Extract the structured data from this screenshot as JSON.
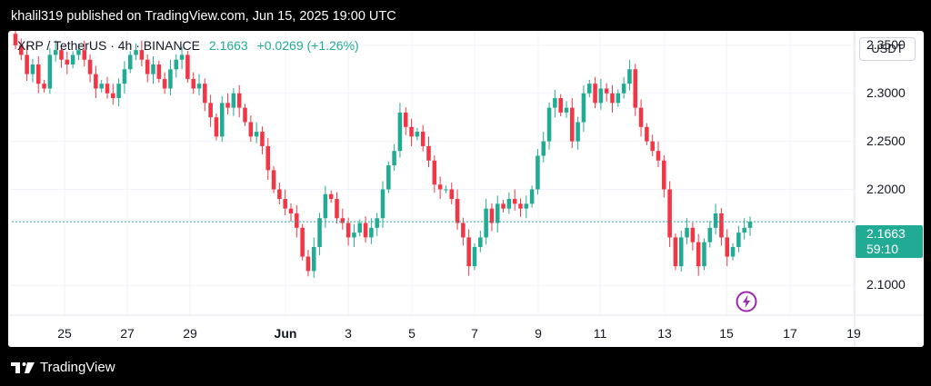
{
  "header": {
    "published": "khalil319 published on TradingView.com, Jun 15, 2025 19:00 UTC"
  },
  "legend": {
    "symbol": "XRP / TetherUS · 4h · BINANCE",
    "price": "2.1663",
    "change": "+0.0269 (+1.26%)"
  },
  "currency_button": "USDT",
  "last_price_tag": {
    "price": "2.1663",
    "countdown": "59:10"
  },
  "footer": {
    "brand": "TradingView"
  },
  "colors": {
    "up": "#22ab94",
    "down": "#f23645",
    "price_line": "#22ab94",
    "flash": "#9c27b0"
  },
  "icons": [
    "flash-icon",
    "tradingview-logo-icon"
  ],
  "chart_data": {
    "type": "candlestick",
    "title": "XRP / TetherUS · 4h · BINANCE",
    "ylim": [
      2.07,
      2.365
    ],
    "y_ticks": [
      "2.3500",
      "2.3000",
      "2.2500",
      "2.2000",
      "2.1000"
    ],
    "y_tick_values": [
      2.35,
      2.3,
      2.25,
      2.2,
      2.1
    ],
    "x_ticks": [
      "25",
      "27",
      "29",
      "Jun",
      "3",
      "5",
      "7",
      "9",
      "11",
      "13",
      "15",
      "17",
      "19"
    ],
    "x_tick_bold": [
      "Jun"
    ],
    "last_price": 2.1663,
    "grid": true,
    "close_series": [
      2.35,
      2.34,
      2.32,
      2.33,
      2.31,
      2.305,
      2.34,
      2.345,
      2.335,
      2.33,
      2.34,
      2.345,
      2.335,
      2.32,
      2.305,
      2.31,
      2.3,
      2.295,
      2.31,
      2.325,
      2.34,
      2.345,
      2.335,
      2.32,
      2.33,
      2.315,
      2.305,
      2.325,
      2.335,
      2.34,
      2.315,
      2.305,
      2.31,
      2.29,
      2.275,
      2.255,
      2.29,
      2.285,
      2.3,
      2.285,
      2.27,
      2.255,
      2.26,
      2.245,
      2.22,
      2.2,
      2.19,
      2.18,
      2.175,
      2.16,
      2.13,
      2.115,
      2.14,
      2.17,
      2.195,
      2.19,
      2.17,
      2.165,
      2.15,
      2.155,
      2.165,
      2.15,
      2.16,
      2.17,
      2.2,
      2.225,
      2.24,
      2.28,
      2.265,
      2.255,
      2.26,
      2.245,
      2.23,
      2.205,
      2.2,
      2.2,
      2.19,
      2.165,
      2.15,
      2.12,
      2.14,
      2.15,
      2.18,
      2.165,
      2.185,
      2.18,
      2.19,
      2.185,
      2.18,
      2.185,
      2.2,
      2.235,
      2.25,
      2.285,
      2.295,
      2.28,
      2.285,
      2.25,
      2.27,
      2.3,
      2.31,
      2.29,
      2.305,
      2.3,
      2.29,
      2.3,
      2.31,
      2.325,
      2.285,
      2.265,
      2.25,
      2.24,
      2.23,
      2.2,
      2.15,
      2.12,
      2.15,
      2.16,
      2.145,
      2.12,
      2.145,
      2.16,
      2.175,
      2.15,
      2.13,
      2.14,
      2.155,
      2.16,
      2.1663
    ]
  }
}
